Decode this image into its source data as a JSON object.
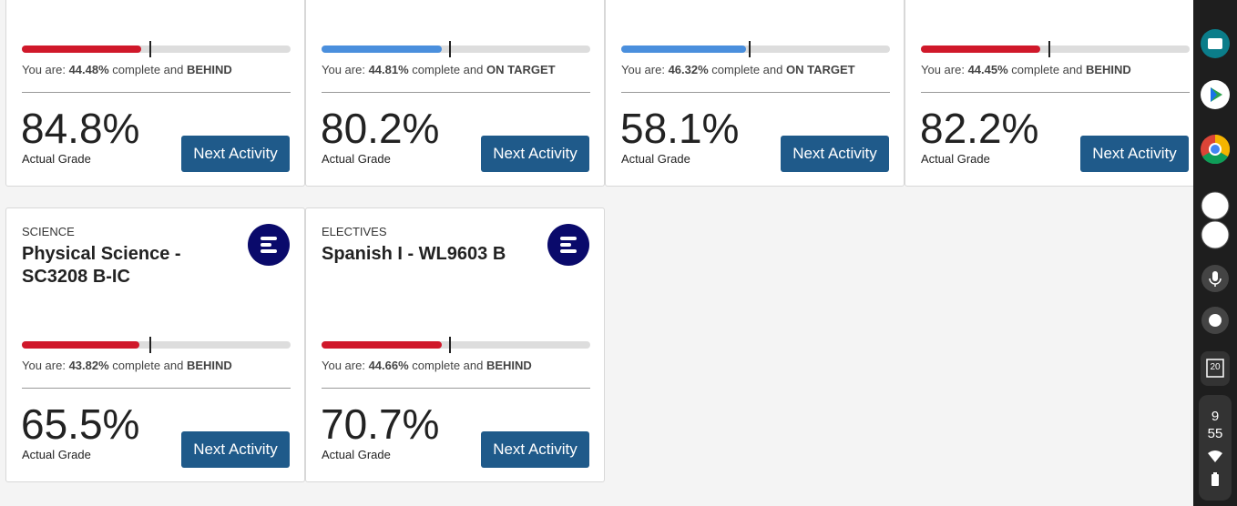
{
  "labels": {
    "you_are": "You are:",
    "complete_and": "complete and",
    "actual_grade": "Actual Grade",
    "next_activity": "Next Activity"
  },
  "courses": [
    {
      "progress": "44.48%",
      "status": "BEHIND",
      "grade": "84.8%"
    },
    {
      "progress": "44.81%",
      "status": "ON TARGET",
      "grade": "80.2%"
    },
    {
      "progress": "46.32%",
      "status": "ON TARGET",
      "grade": "58.1%"
    },
    {
      "progress": "44.45%",
      "status": "BEHIND",
      "grade": "82.2%"
    },
    {
      "category": "SCIENCE",
      "title": "Physical Science - SC3208 B-IC",
      "progress": "43.82%",
      "status": "BEHIND",
      "grade": "65.5%"
    },
    {
      "category": "ELECTIVES",
      "title": "Spanish I - WL9603 B",
      "progress": "44.66%",
      "status": "BEHIND",
      "grade": "70.7%"
    }
  ],
  "shelf": {
    "calendar_day": "20",
    "hour": "9",
    "minute": "55"
  }
}
